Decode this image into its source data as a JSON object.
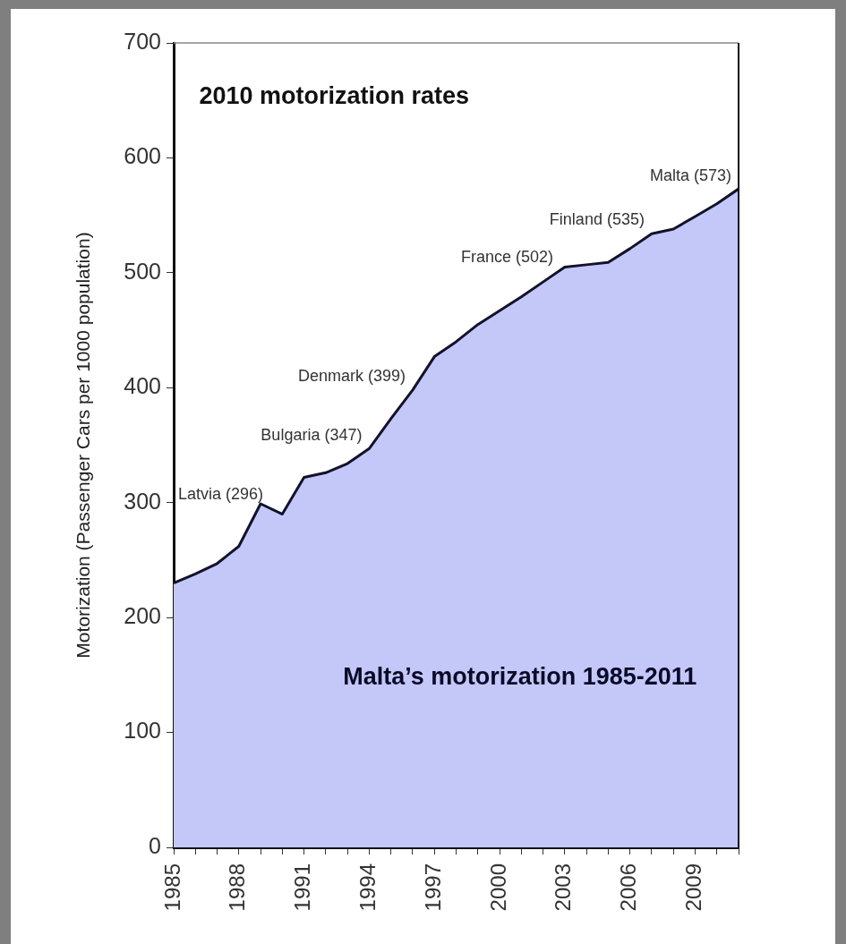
{
  "chart_data": {
    "type": "area",
    "title": "Malta’s motorization 1985-2011",
    "ylabel": "Motorization (Passenger Cars per 1000 population)",
    "x": [
      1985,
      1986,
      1987,
      1988,
      1989,
      1990,
      1991,
      1992,
      1993,
      1994,
      1995,
      1996,
      1997,
      1998,
      1999,
      2000,
      2001,
      2002,
      2003,
      2004,
      2005,
      2006,
      2007,
      2008,
      2009,
      2010,
      2011
    ],
    "values": [
      230,
      238,
      247,
      262,
      299,
      290,
      322,
      326,
      334,
      347,
      373,
      398,
      427,
      440,
      455,
      467,
      479,
      492,
      505,
      507,
      509,
      521,
      534,
      538,
      549,
      560,
      573
    ],
    "color": "#c4c8f8",
    "xlim": [
      1985,
      2011
    ],
    "xticks": [
      1985,
      {
        "value": 1986,
        "label": null
      },
      {
        "value": 1987,
        "label": null
      },
      1988,
      {
        "value": 1989,
        "label": null
      },
      {
        "value": 1990,
        "label": null
      },
      1991,
      {
        "value": 1992,
        "label": null
      },
      {
        "value": 1993,
        "label": null
      },
      1994,
      {
        "value": 1995,
        "label": null
      },
      {
        "value": 1996,
        "label": null
      },
      1997,
      {
        "value": 1998,
        "label": null
      },
      {
        "value": 1999,
        "label": null
      },
      2000,
      {
        "value": 2001,
        "label": null
      },
      {
        "value": 2002,
        "label": null
      },
      2003,
      {
        "value": 2004,
        "label": null
      },
      {
        "value": 2005,
        "label": null
      },
      2006,
      {
        "value": 2007,
        "label": null
      },
      {
        "value": 2008,
        "label": null
      },
      2009,
      {
        "value": 2010,
        "label": null
      },
      {
        "value": 2011,
        "label": null
      }
    ],
    "ylim": [
      0,
      700
    ],
    "yticks": [
      0,
      100,
      200,
      300,
      400,
      500,
      600,
      700
    ],
    "annotations": [
      "2010 motorization rates",
      {
        "text": "Latvia (296)",
        "x": 1988.9,
        "y": 296
      },
      {
        "text": "Bulgaria (347)",
        "x": 1994,
        "y": 347
      },
      {
        "text": "Denmark (399)",
        "x": 1996,
        "y": 399
      },
      {
        "text": "France (502)",
        "x": 2002.8,
        "y": 502
      },
      {
        "text": "Finland (535)",
        "x": 2007,
        "y": 535
      },
      {
        "text": "Malta (573)",
        "x": 2011,
        "y": 573
      }
    ]
  }
}
